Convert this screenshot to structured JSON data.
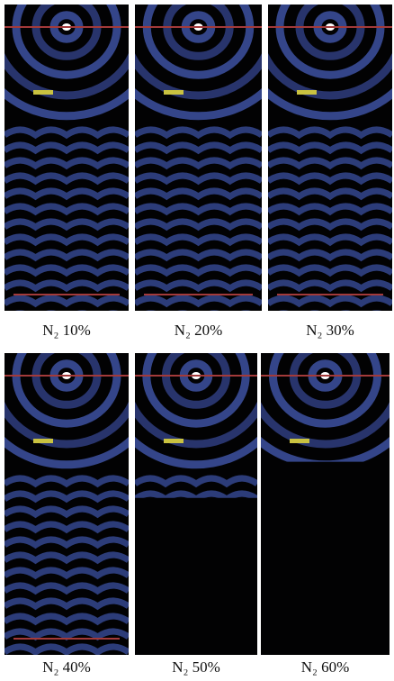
{
  "panels": [
    {
      "label": "N₂ 10%"
    },
    {
      "label": "N₂ 20%"
    },
    {
      "label": "N₂ 30%"
    },
    {
      "label": "N₂ 40%"
    },
    {
      "label": "N₂ 50%"
    },
    {
      "label": "N₂ 60%"
    }
  ]
}
